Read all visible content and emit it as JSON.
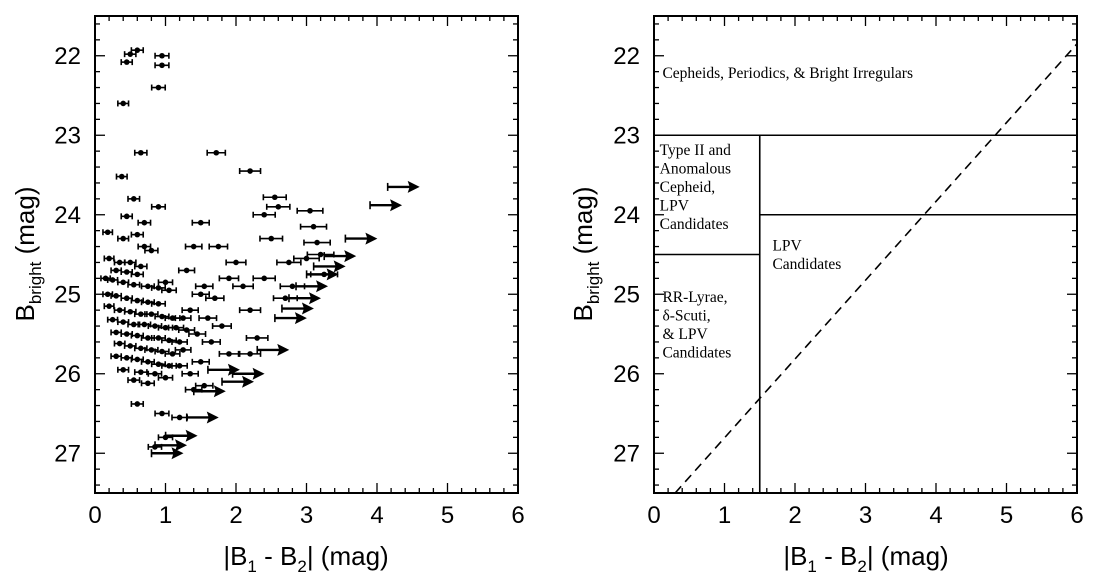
{
  "chart_data": [
    {
      "type": "scatter",
      "panel": "left",
      "title": "",
      "xlabel_main": "|B",
      "xlabel_sub1": "1",
      "xlabel_mid": " - B",
      "xlabel_sub2": "2",
      "xlabel_end": "| (mag)",
      "ylabel_main": "B",
      "ylabel_sub": "bright",
      "ylabel_end": " (mag)",
      "xlim": [
        0,
        6
      ],
      "ylim": [
        27.5,
        21.5
      ],
      "y_inverted": true,
      "xticks": [
        "0",
        "1",
        "2",
        "3",
        "4",
        "5",
        "6"
      ],
      "yticks": [
        "22",
        "23",
        "24",
        "25",
        "26",
        "27"
      ],
      "grid": false,
      "points": [
        {
          "x": 0.6,
          "y": 21.93
        },
        {
          "x": 0.5,
          "y": 21.98
        },
        {
          "x": 0.95,
          "y": 22.0
        },
        {
          "x": 0.45,
          "y": 22.08
        },
        {
          "x": 0.95,
          "y": 22.12
        },
        {
          "x": 0.9,
          "y": 22.4
        },
        {
          "x": 0.4,
          "y": 22.6
        },
        {
          "x": 0.65,
          "y": 23.22
        },
        {
          "x": 1.72,
          "y": 23.22
        },
        {
          "x": 0.38,
          "y": 23.52
        },
        {
          "x": 0.55,
          "y": 23.8
        },
        {
          "x": 0.9,
          "y": 23.9
        },
        {
          "x": 0.45,
          "y": 24.02
        },
        {
          "x": 0.7,
          "y": 24.1
        },
        {
          "x": 0.4,
          "y": 24.3
        },
        {
          "x": 0.18,
          "y": 24.22
        },
        {
          "x": 0.6,
          "y": 24.25
        },
        {
          "x": 0.7,
          "y": 24.4
        },
        {
          "x": 0.8,
          "y": 24.45
        },
        {
          "x": 0.2,
          "y": 24.55
        },
        {
          "x": 0.35,
          "y": 24.6
        },
        {
          "x": 0.5,
          "y": 24.6
        },
        {
          "x": 0.65,
          "y": 24.65
        },
        {
          "x": 0.3,
          "y": 24.7
        },
        {
          "x": 0.45,
          "y": 24.72
        },
        {
          "x": 0.6,
          "y": 24.75
        },
        {
          "x": 0.15,
          "y": 24.8
        },
        {
          "x": 0.25,
          "y": 24.82
        },
        {
          "x": 0.4,
          "y": 24.85
        },
        {
          "x": 0.55,
          "y": 24.88
        },
        {
          "x": 0.75,
          "y": 24.9
        },
        {
          "x": 0.9,
          "y": 24.92
        },
        {
          "x": 1.0,
          "y": 24.85
        },
        {
          "x": 1.05,
          "y": 24.95
        },
        {
          "x": 0.18,
          "y": 25.0
        },
        {
          "x": 0.3,
          "y": 25.02
        },
        {
          "x": 0.45,
          "y": 25.05
        },
        {
          "x": 0.6,
          "y": 25.08
        },
        {
          "x": 0.75,
          "y": 25.1
        },
        {
          "x": 0.9,
          "y": 25.12
        },
        {
          "x": 0.2,
          "y": 25.15
        },
        {
          "x": 0.35,
          "y": 25.2
        },
        {
          "x": 0.5,
          "y": 25.22
        },
        {
          "x": 0.65,
          "y": 25.25
        },
        {
          "x": 0.8,
          "y": 25.25
        },
        {
          "x": 0.95,
          "y": 25.28
        },
        {
          "x": 1.1,
          "y": 25.3
        },
        {
          "x": 1.25,
          "y": 25.3
        },
        {
          "x": 0.25,
          "y": 25.32
        },
        {
          "x": 0.4,
          "y": 25.35
        },
        {
          "x": 0.55,
          "y": 25.38
        },
        {
          "x": 0.7,
          "y": 25.38
        },
        {
          "x": 0.85,
          "y": 25.4
        },
        {
          "x": 1.0,
          "y": 25.42
        },
        {
          "x": 1.15,
          "y": 25.42
        },
        {
          "x": 1.3,
          "y": 25.45
        },
        {
          "x": 0.3,
          "y": 25.48
        },
        {
          "x": 0.45,
          "y": 25.5
        },
        {
          "x": 0.6,
          "y": 25.52
        },
        {
          "x": 0.75,
          "y": 25.55
        },
        {
          "x": 0.9,
          "y": 25.55
        },
        {
          "x": 1.05,
          "y": 25.58
        },
        {
          "x": 1.2,
          "y": 25.6
        },
        {
          "x": 0.35,
          "y": 25.62
        },
        {
          "x": 0.5,
          "y": 25.65
        },
        {
          "x": 0.65,
          "y": 25.68
        },
        {
          "x": 0.8,
          "y": 25.7
        },
        {
          "x": 0.95,
          "y": 25.72
        },
        {
          "x": 1.1,
          "y": 25.75
        },
        {
          "x": 0.3,
          "y": 25.78
        },
        {
          "x": 0.45,
          "y": 25.8
        },
        {
          "x": 0.6,
          "y": 25.82
        },
        {
          "x": 0.75,
          "y": 25.85
        },
        {
          "x": 0.9,
          "y": 25.88
        },
        {
          "x": 1.05,
          "y": 25.9
        },
        {
          "x": 1.2,
          "y": 25.9
        },
        {
          "x": 0.4,
          "y": 25.95
        },
        {
          "x": 0.65,
          "y": 25.98
        },
        {
          "x": 0.85,
          "y": 26.0
        },
        {
          "x": 1.0,
          "y": 26.05
        },
        {
          "x": 0.55,
          "y": 26.08
        },
        {
          "x": 0.75,
          "y": 26.12
        },
        {
          "x": 0.6,
          "y": 26.38
        },
        {
          "x": 0.95,
          "y": 26.5
        },
        {
          "x": 1.2,
          "y": 26.55
        },
        {
          "x": 1.0,
          "y": 26.8
        },
        {
          "x": 0.85,
          "y": 26.92
        },
        {
          "x": 1.4,
          "y": 24.4
        },
        {
          "x": 1.75,
          "y": 24.4
        },
        {
          "x": 1.55,
          "y": 24.9
        },
        {
          "x": 1.9,
          "y": 24.8
        },
        {
          "x": 1.3,
          "y": 24.7
        },
        {
          "x": 1.5,
          "y": 25.0
        },
        {
          "x": 1.7,
          "y": 25.05
        },
        {
          "x": 1.35,
          "y": 25.2
        },
        {
          "x": 1.6,
          "y": 25.3
        },
        {
          "x": 1.45,
          "y": 25.5
        },
        {
          "x": 1.65,
          "y": 25.6
        },
        {
          "x": 1.25,
          "y": 25.7
        },
        {
          "x": 1.5,
          "y": 25.85
        },
        {
          "x": 1.35,
          "y": 26.0
        },
        {
          "x": 1.55,
          "y": 26.15
        },
        {
          "x": 1.4,
          "y": 26.2
        },
        {
          "x": 1.8,
          "y": 25.4
        },
        {
          "x": 1.9,
          "y": 25.75
        },
        {
          "x": 2.0,
          "y": 24.6
        },
        {
          "x": 2.1,
          "y": 24.9
        },
        {
          "x": 2.2,
          "y": 25.2
        },
        {
          "x": 2.4,
          "y": 24.0
        },
        {
          "x": 2.5,
          "y": 24.3
        },
        {
          "x": 2.4,
          "y": 24.8
        },
        {
          "x": 2.3,
          "y": 25.55
        },
        {
          "x": 2.2,
          "y": 25.75
        },
        {
          "x": 2.6,
          "y": 23.9
        },
        {
          "x": 2.55,
          "y": 23.78
        },
        {
          "x": 2.75,
          "y": 24.6
        },
        {
          "x": 2.7,
          "y": 25.05
        },
        {
          "x": 2.8,
          "y": 24.9
        },
        {
          "x": 3.05,
          "y": 23.95
        },
        {
          "x": 3.1,
          "y": 24.15
        },
        {
          "x": 3.15,
          "y": 24.35
        },
        {
          "x": 3.2,
          "y": 24.5
        },
        {
          "x": 3.25,
          "y": 24.75
        },
        {
          "x": 3.0,
          "y": 24.55
        },
        {
          "x": 1.5,
          "y": 24.1
        },
        {
          "x": 2.2,
          "y": 23.45
        }
      ],
      "arrow_points": [
        {
          "x": 4.35,
          "y": 23.65
        },
        {
          "x": 4.1,
          "y": 23.88
        },
        {
          "x": 3.75,
          "y": 24.3
        },
        {
          "x": 3.45,
          "y": 24.52
        },
        {
          "x": 3.3,
          "y": 24.65
        },
        {
          "x": 3.2,
          "y": 24.75
        },
        {
          "x": 3.05,
          "y": 24.9
        },
        {
          "x": 2.95,
          "y": 25.05
        },
        {
          "x": 2.85,
          "y": 25.18
        },
        {
          "x": 2.75,
          "y": 25.3
        },
        {
          "x": 2.5,
          "y": 25.7
        },
        {
          "x": 2.15,
          "y": 26.0
        },
        {
          "x": 2.0,
          "y": 26.1
        },
        {
          "x": 1.6,
          "y": 26.22
        },
        {
          "x": 1.5,
          "y": 26.55
        },
        {
          "x": 1.2,
          "y": 26.78
        },
        {
          "x": 1.05,
          "y": 26.9
        },
        {
          "x": 1.0,
          "y": 27.0
        },
        {
          "x": 1.8,
          "y": 25.95
        }
      ]
    },
    {
      "type": "diagram",
      "panel": "right",
      "title": "",
      "xlabel_main": "|B",
      "xlabel_sub1": "1",
      "xlabel_mid": " - B",
      "xlabel_sub2": "2",
      "xlabel_end": "| (mag)",
      "ylabel_main": "B",
      "ylabel_sub": "bright",
      "ylabel_end": " (mag)",
      "xlim": [
        0,
        6
      ],
      "ylim": [
        27.5,
        21.5
      ],
      "y_inverted": true,
      "xticks": [
        "0",
        "1",
        "2",
        "3",
        "4",
        "5",
        "6"
      ],
      "yticks": [
        "22",
        "23",
        "24",
        "25",
        "26",
        "27"
      ],
      "grid": false,
      "boundaries": [
        {
          "x1": 0,
          "y1": 23.0,
          "x2": 6,
          "y2": 23.0
        },
        {
          "x1": 1.5,
          "y1": 23.0,
          "x2": 1.5,
          "y2": 27.5
        },
        {
          "x1": 0,
          "y1": 24.5,
          "x2": 1.5,
          "y2": 24.5
        },
        {
          "x1": 1.5,
          "y1": 24.0,
          "x2": 6,
          "y2": 24.0
        }
      ],
      "dashed_line": {
        "x1": 0.3,
        "y1": 27.5,
        "x2": 6.0,
        "y2": 21.85
      },
      "regions": [
        {
          "lines": [
            "Cepheids, Periodics, & Bright Irregulars"
          ],
          "x": 0.12,
          "y": 22.28
        },
        {
          "lines": [
            "Type II and",
            "Anomalous",
            "Cepheid,",
            "LPV",
            "Candidates"
          ],
          "x": 0.08,
          "y": 23.25
        },
        {
          "lines": [
            "LPV",
            "Candidates"
          ],
          "x": 1.68,
          "y": 24.45
        },
        {
          "lines": [
            "RR-Lyrae,",
            "δ-Scuti,",
            "& LPV",
            "Candidates"
          ],
          "x": 0.12,
          "y": 25.1
        }
      ]
    }
  ]
}
